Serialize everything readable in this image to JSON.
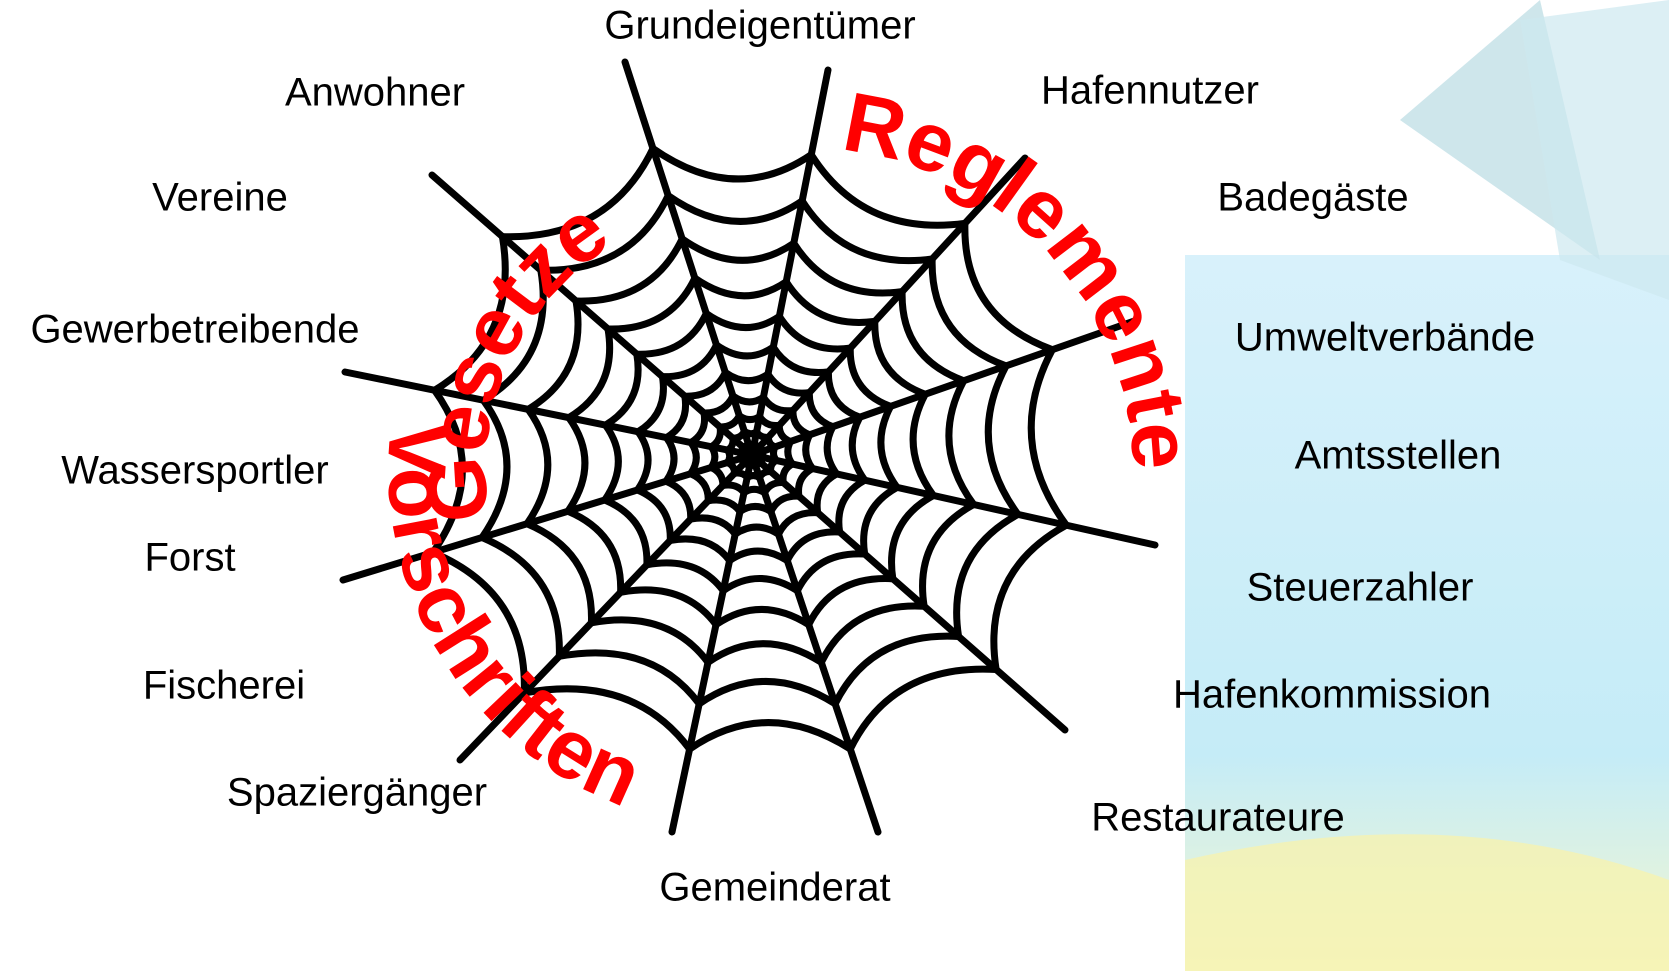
{
  "labels": [
    "Grundeigentümer",
    "Anwohner",
    "Hafennutzer",
    "Vereine",
    "Badegäste",
    "Gewerbetreibende",
    "Umweltverbände",
    "Wassersportler",
    "Amtsstellen",
    "Forst",
    "Steuerzahler",
    "Fischerei",
    "Hafenkommission",
    "Spaziergänger",
    "Restaurateure",
    "Gemeinderat"
  ],
  "web_words": [
    "Gesetze",
    "Reglemente",
    "Vorschriften"
  ]
}
